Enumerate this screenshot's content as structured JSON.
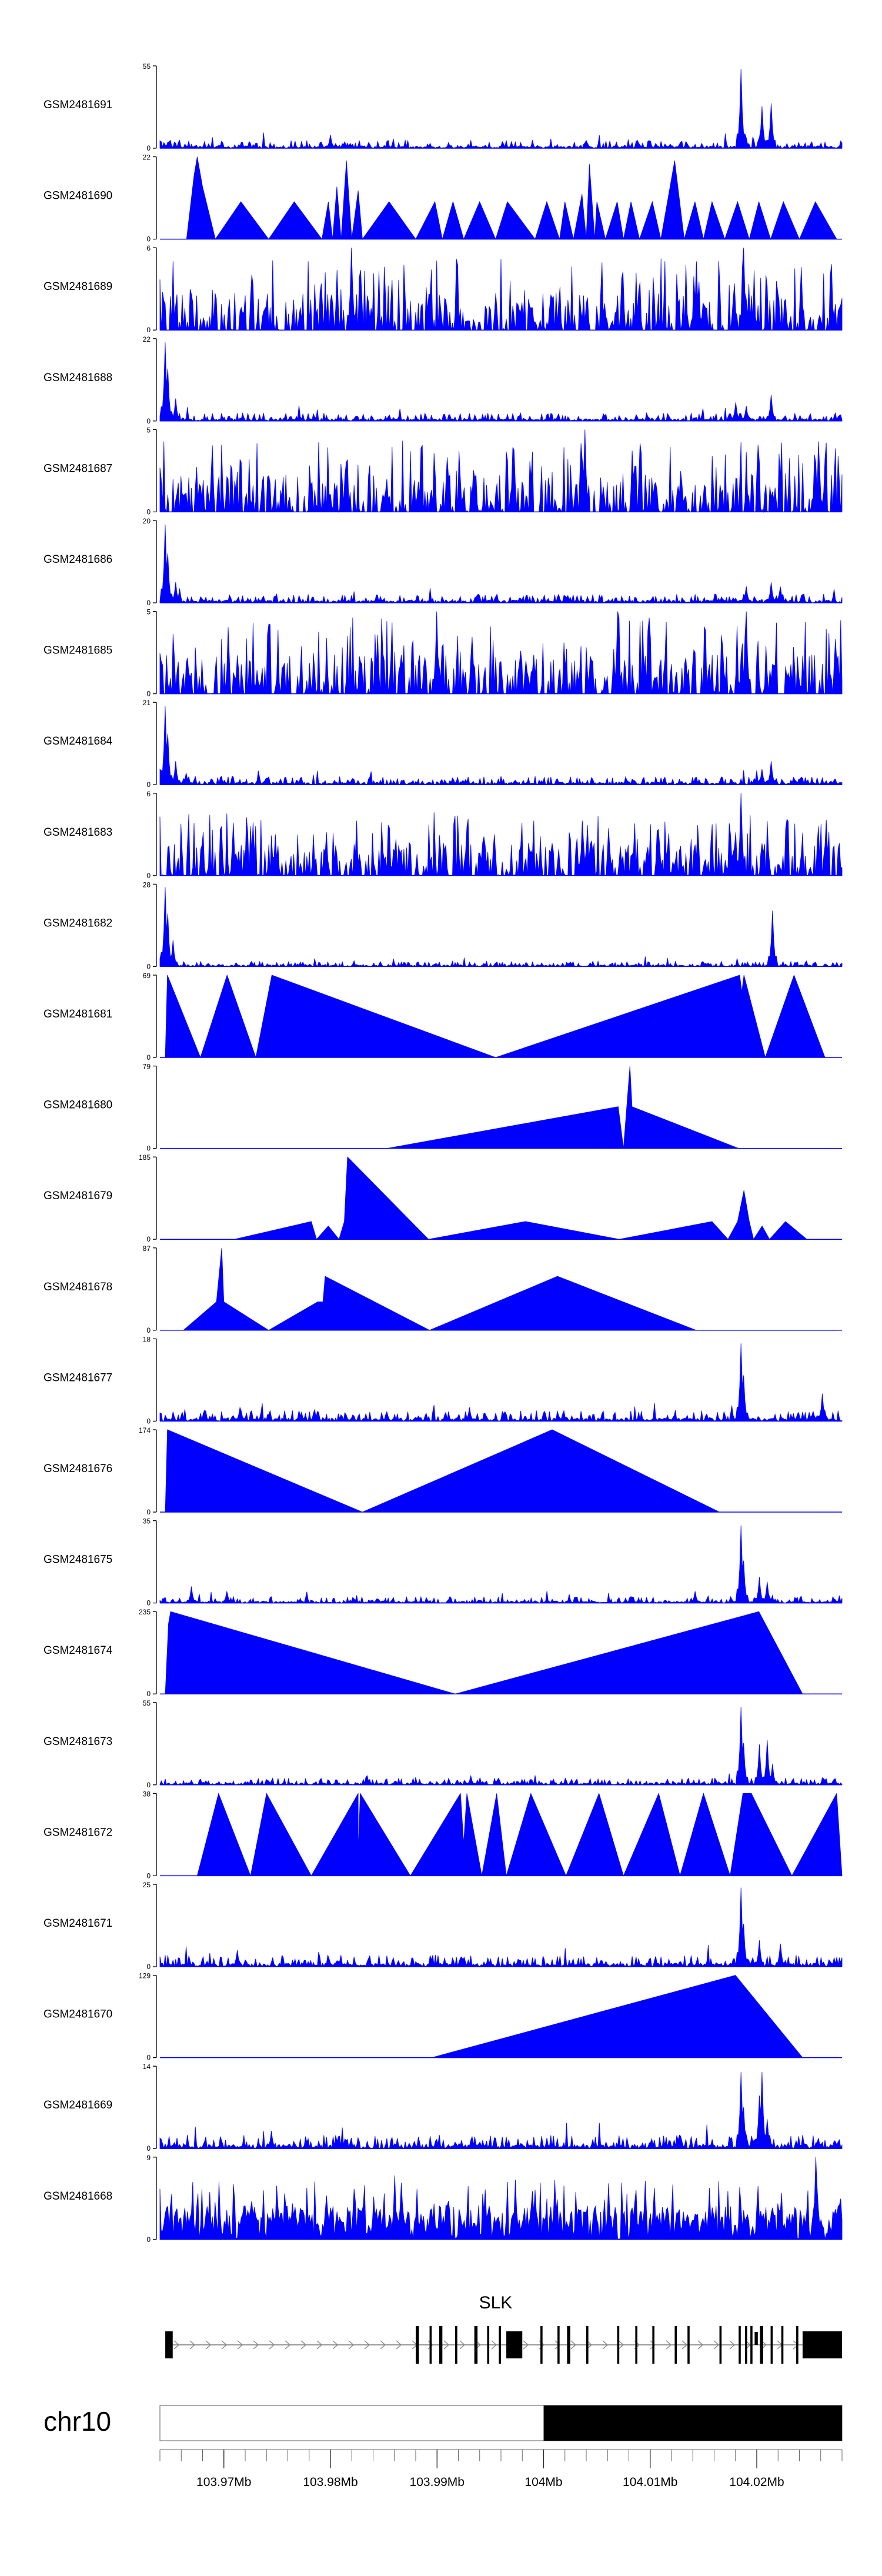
{
  "chart_data": {
    "type": "area",
    "figure": "ChIP-seq signal coverage tracks with gene model and chromosome ideogram",
    "color": "#0000ff",
    "track_style": "filled area, one panel per sample, y-axis labeled with 0 and max",
    "x_range_mb": [
      103.964,
      104.028
    ],
    "tracks": [
      {
        "name": "GSM2481691",
        "ymax": 55,
        "pattern": "noise_peaks",
        "base": 3,
        "peaks": [
          [
            104.0185,
            53
          ],
          [
            104.0205,
            28
          ],
          [
            104.0213,
            30
          ],
          [
            103.98,
            9
          ]
        ]
      },
      {
        "name": "GSM2481690",
        "ymax": 22,
        "pattern": "triangles",
        "points": [
          [
            103.965,
            0
          ],
          [
            103.9665,
            0
          ],
          [
            103.9672,
            17
          ],
          [
            103.9675,
            22
          ],
          [
            103.968,
            14
          ],
          [
            103.9692,
            0
          ],
          [
            103.9716,
            10
          ],
          [
            103.9742,
            0
          ],
          [
            103.9766,
            10
          ],
          [
            103.9792,
            0
          ],
          [
            103.9798,
            10
          ],
          [
            103.9802,
            0
          ],
          [
            103.9806,
            14
          ],
          [
            103.981,
            0
          ],
          [
            103.9815,
            21
          ],
          [
            103.982,
            0
          ],
          [
            103.9826,
            13
          ],
          [
            103.983,
            0
          ],
          [
            103.9855,
            10
          ],
          [
            103.988,
            0
          ],
          [
            103.9898,
            10
          ],
          [
            103.9905,
            0
          ],
          [
            103.9915,
            10
          ],
          [
            103.9925,
            0
          ],
          [
            103.994,
            10
          ],
          [
            103.9955,
            0
          ],
          [
            103.9966,
            10
          ],
          [
            103.9992,
            0
          ],
          [
            104.0003,
            10
          ],
          [
            104.0015,
            0
          ],
          [
            104.002,
            10
          ],
          [
            104.0028,
            0
          ],
          [
            104.0036,
            12
          ],
          [
            104.004,
            0
          ],
          [
            104.0043,
            20
          ],
          [
            104.0048,
            0
          ],
          [
            104.005,
            10
          ],
          [
            104.0058,
            0
          ],
          [
            104.0069,
            10
          ],
          [
            104.0075,
            0
          ],
          [
            104.0082,
            10
          ],
          [
            104.009,
            0
          ],
          [
            104.0102,
            10
          ],
          [
            104.011,
            0
          ],
          [
            104.0123,
            21
          ],
          [
            104.0132,
            0
          ],
          [
            104.0142,
            10
          ],
          [
            104.015,
            0
          ],
          [
            104.0158,
            10
          ],
          [
            104.017,
            0
          ],
          [
            104.0182,
            10
          ],
          [
            104.0193,
            0
          ],
          [
            104.0202,
            10
          ],
          [
            104.0213,
            0
          ],
          [
            104.0225,
            10
          ],
          [
            104.024,
            0
          ],
          [
            104.0255,
            10
          ],
          [
            104.0275,
            0
          ]
        ]
      },
      {
        "name": "GSM2481689",
        "ymax": 6,
        "pattern": "spiky",
        "base": 1.8,
        "peaks": [
          [
            103.982,
            6
          ],
          [
            104.0143,
            5
          ],
          [
            104.0188,
            6
          ]
        ]
      },
      {
        "name": "GSM2481688",
        "ymax": 22,
        "pattern": "noise_peaks",
        "base": 1.2,
        "peaks": [
          [
            103.9645,
            21
          ],
          [
            103.9648,
            14
          ],
          [
            103.9655,
            6
          ],
          [
            104.018,
            5
          ],
          [
            104.019,
            4
          ],
          [
            104.0213,
            7
          ]
        ]
      },
      {
        "name": "GSM2481687",
        "ymax": 5,
        "pattern": "spiky",
        "base": 1.5,
        "peaks": [
          [
            104.0039,
            5
          ],
          [
            103.9815,
            3
          ]
        ]
      },
      {
        "name": "GSM2481686",
        "ymax": 20,
        "pattern": "noise_peaks",
        "base": 1.2,
        "peaks": [
          [
            103.9645,
            19
          ],
          [
            103.9648,
            12
          ],
          [
            103.9655,
            5
          ],
          [
            104.019,
            4
          ],
          [
            104.0213,
            5
          ]
        ]
      },
      {
        "name": "GSM2481685",
        "ymax": 5,
        "pattern": "spiky",
        "base": 1.6,
        "peaks": [
          [
            103.99,
            5
          ],
          [
            104.007,
            5
          ],
          [
            104.019,
            5
          ]
        ]
      },
      {
        "name": "GSM2481684",
        "ymax": 21,
        "pattern": "noise_peaks",
        "base": 1.2,
        "peaks": [
          [
            103.9645,
            20
          ],
          [
            103.9648,
            13
          ],
          [
            103.9655,
            6
          ],
          [
            103.9665,
            3
          ],
          [
            104.0213,
            6
          ],
          [
            104.0205,
            4
          ]
        ]
      },
      {
        "name": "GSM2481683",
        "ymax": 6,
        "pattern": "spiky",
        "base": 1.6,
        "peaks": [
          [
            104.0185,
            6
          ],
          [
            104.0175,
            3
          ],
          [
            103.9748,
            3
          ]
        ]
      },
      {
        "name": "GSM2481682",
        "ymax": 28,
        "pattern": "noise_peaks",
        "base": 1.0,
        "peaks": [
          [
            103.9645,
            27
          ],
          [
            103.9648,
            18
          ],
          [
            103.9652,
            9
          ],
          [
            104.0215,
            19
          ]
        ]
      },
      {
        "name": "GSM2481681",
        "ymax": 69,
        "pattern": "triangles",
        "points": [
          [
            103.9645,
            0
          ],
          [
            103.9647,
            69
          ],
          [
            103.9678,
            0
          ],
          [
            103.9703,
            69
          ],
          [
            103.973,
            0
          ],
          [
            103.9745,
            69
          ],
          [
            103.9955,
            0
          ],
          [
            104.0184,
            69
          ],
          [
            104.0186,
            55
          ],
          [
            104.0188,
            69
          ],
          [
            104.0208,
            0
          ],
          [
            104.0235,
            69
          ],
          [
            104.0264,
            0
          ]
        ]
      },
      {
        "name": "GSM2481680",
        "ymax": 79,
        "pattern": "triangles",
        "points": [
          [
            103.9853,
            0
          ],
          [
            104.007,
            40
          ],
          [
            104.0075,
            0
          ],
          [
            104.0081,
            79
          ],
          [
            104.0083,
            40
          ],
          [
            104.0183,
            0
          ]
        ]
      },
      {
        "name": "GSM2481679",
        "ymax": 185,
        "pattern": "triangles",
        "points": [
          [
            103.971,
            0
          ],
          [
            103.9782,
            40
          ],
          [
            103.9787,
            0
          ],
          [
            103.9798,
            30
          ],
          [
            103.9808,
            0
          ],
          [
            103.9813,
            40
          ],
          [
            103.9816,
            185
          ],
          [
            103.9892,
            0
          ],
          [
            103.9983,
            40
          ],
          [
            104.0071,
            0
          ],
          [
            104.0158,
            40
          ],
          [
            104.0173,
            0
          ],
          [
            104.0182,
            40
          ],
          [
            104.0188,
            110
          ],
          [
            104.0193,
            40
          ],
          [
            104.0197,
            0
          ],
          [
            104.0205,
            30
          ],
          [
            104.0212,
            0
          ],
          [
            104.0227,
            40
          ],
          [
            104.0247,
            0
          ]
        ]
      },
      {
        "name": "GSM2481678",
        "ymax": 87,
        "pattern": "triangles",
        "points": [
          [
            103.9662,
            0
          ],
          [
            103.9693,
            30
          ],
          [
            103.9698,
            87
          ],
          [
            103.97,
            30
          ],
          [
            103.9742,
            0
          ],
          [
            103.9788,
            30
          ],
          [
            103.9793,
            30
          ],
          [
            103.9795,
            57
          ],
          [
            103.9893,
            0
          ],
          [
            104.0013,
            57
          ],
          [
            104.0143,
            0
          ]
        ]
      },
      {
        "name": "GSM2481677",
        "ymax": 18,
        "pattern": "noise_peaks",
        "base": 1.3,
        "peaks": [
          [
            104.0185,
            17
          ],
          [
            104.0188,
            10
          ],
          [
            104.0261,
            6
          ],
          [
            103.9715,
            3
          ],
          [
            103.993,
            3
          ]
        ]
      },
      {
        "name": "GSM2481676",
        "ymax": 174,
        "pattern": "triangles",
        "points": [
          [
            103.9645,
            0
          ],
          [
            103.9647,
            174
          ],
          [
            103.983,
            0
          ],
          [
            104.0008,
            174
          ],
          [
            104.0165,
            0
          ]
        ]
      },
      {
        "name": "GSM2481675",
        "ymax": 35,
        "pattern": "noise_peaks",
        "base": 1.5,
        "peaks": [
          [
            104.0185,
            33
          ],
          [
            104.0188,
            18
          ],
          [
            104.0203,
            11
          ],
          [
            104.021,
            9
          ],
          [
            103.967,
            7
          ],
          [
            103.9703,
            5
          ],
          [
            104.0142,
            5
          ]
        ]
      },
      {
        "name": "GSM2481674",
        "ymax": 235,
        "pattern": "triangles",
        "points": [
          [
            103.9645,
            0
          ],
          [
            103.9648,
            200
          ],
          [
            103.965,
            235
          ],
          [
            103.9917,
            0
          ],
          [
            104.0202,
            235
          ],
          [
            104.0243,
            0
          ]
        ]
      },
      {
        "name": "GSM2481673",
        "ymax": 55,
        "pattern": "noise_peaks",
        "base": 2.5,
        "peaks": [
          [
            104.0185,
            52
          ],
          [
            104.0188,
            28
          ],
          [
            104.0203,
            27
          ],
          [
            104.021,
            30
          ],
          [
            104.0215,
            14
          ],
          [
            103.9932,
            6
          ]
        ]
      },
      {
        "name": "GSM2481672",
        "ymax": 38,
        "pattern": "triangles",
        "points": [
          [
            103.9675,
            0
          ],
          [
            103.9695,
            38
          ],
          [
            103.9725,
            0
          ],
          [
            103.974,
            38
          ],
          [
            103.9782,
            0
          ],
          [
            103.9826,
            38
          ],
          [
            103.9826,
            10
          ],
          [
            103.9828,
            38
          ],
          [
            103.9875,
            0
          ],
          [
            103.9922,
            38
          ],
          [
            103.9925,
            15
          ],
          [
            103.9928,
            38
          ],
          [
            103.9942,
            0
          ],
          [
            103.9956,
            38
          ],
          [
            103.9965,
            0
          ],
          [
            103.9988,
            38
          ],
          [
            104.0021,
            0
          ],
          [
            104.0052,
            38
          ],
          [
            104.0075,
            0
          ],
          [
            104.0108,
            38
          ],
          [
            104.0128,
            0
          ],
          [
            104.015,
            38
          ],
          [
            104.0175,
            0
          ],
          [
            104.0187,
            38
          ],
          [
            104.0195,
            38
          ],
          [
            104.0233,
            0
          ],
          [
            104.0275,
            38
          ],
          [
            104.028,
            0
          ]
        ]
      },
      {
        "name": "GSM2481671",
        "ymax": 25,
        "pattern": "noise_peaks",
        "base": 2.0,
        "peaks": [
          [
            104.0185,
            24
          ],
          [
            104.0188,
            13
          ],
          [
            104.0203,
            8
          ],
          [
            104.0222,
            7
          ],
          [
            103.9713,
            5
          ]
        ]
      },
      {
        "name": "GSM2481670",
        "ymax": 129,
        "pattern": "triangles",
        "points": [
          [
            103.9895,
            0
          ],
          [
            104.018,
            129
          ],
          [
            104.0243,
            0
          ]
        ]
      },
      {
        "name": "GSM2481669",
        "ymax": 14,
        "pattern": "noise_peaks",
        "base": 1.3,
        "peaks": [
          [
            104.0185,
            13
          ],
          [
            104.0188,
            7
          ],
          [
            104.0203,
            9
          ],
          [
            104.0205,
            13
          ],
          [
            104.021,
            5
          ],
          [
            103.9745,
            3
          ]
        ]
      },
      {
        "name": "GSM2481668",
        "ymax": 9,
        "pattern": "spiky_tri",
        "base": 2.5,
        "peaks": [
          [
            104.0256,
            9
          ],
          [
            103.986,
            7
          ],
          [
            104.001,
            6
          ]
        ]
      }
    ],
    "gene": {
      "name": "SLK",
      "strand": "+",
      "span_mb": [
        103.9645,
        104.028
      ],
      "exons_mb": [
        [
          103.9645,
          103.9652
        ],
        [
          103.988,
          103.9883
        ],
        [
          103.9893,
          103.9895
        ],
        [
          103.9902,
          103.9905
        ],
        [
          103.9917,
          103.9919
        ],
        [
          103.9935,
          103.9938
        ],
        [
          103.9947,
          103.9949
        ],
        [
          103.9958,
          103.996
        ],
        [
          103.9965,
          103.998
        ],
        [
          103.9997,
          103.9999
        ],
        [
          104.0013,
          104.0015
        ],
        [
          104.0022,
          104.0025
        ],
        [
          104.004,
          104.0042
        ],
        [
          104.0069,
          104.0071
        ],
        [
          104.0086,
          104.0088
        ],
        [
          104.0102,
          104.0104
        ],
        [
          104.0123,
          104.0125
        ],
        [
          104.0135,
          104.0137
        ],
        [
          104.0165,
          104.0167
        ],
        [
          104.0183,
          104.0185
        ],
        [
          104.0189,
          104.0191
        ],
        [
          104.0194,
          104.0196
        ],
        [
          104.0203,
          104.0206
        ],
        [
          104.0213,
          104.0215
        ],
        [
          104.0223,
          104.0225
        ],
        [
          104.0237,
          104.0239
        ],
        [
          104.0243,
          104.028
        ]
      ],
      "thin_exons_mb": [
        [
          104.0198,
          104.0201
        ]
      ]
    },
    "chromosome": {
      "name": "chr10",
      "dark_band_mb": [
        104.0,
        104.028
      ]
    },
    "axis": {
      "tick_labels": [
        "103.97Mb",
        "103.98Mb",
        "103.99Mb",
        "104Mb",
        "104.01Mb",
        "104.02Mb"
      ],
      "tick_values_mb": [
        103.97,
        103.98,
        103.99,
        104.0,
        104.01,
        104.02
      ],
      "minor_tick_step_mb": 0.002
    },
    "ylim_min_label": "0"
  }
}
